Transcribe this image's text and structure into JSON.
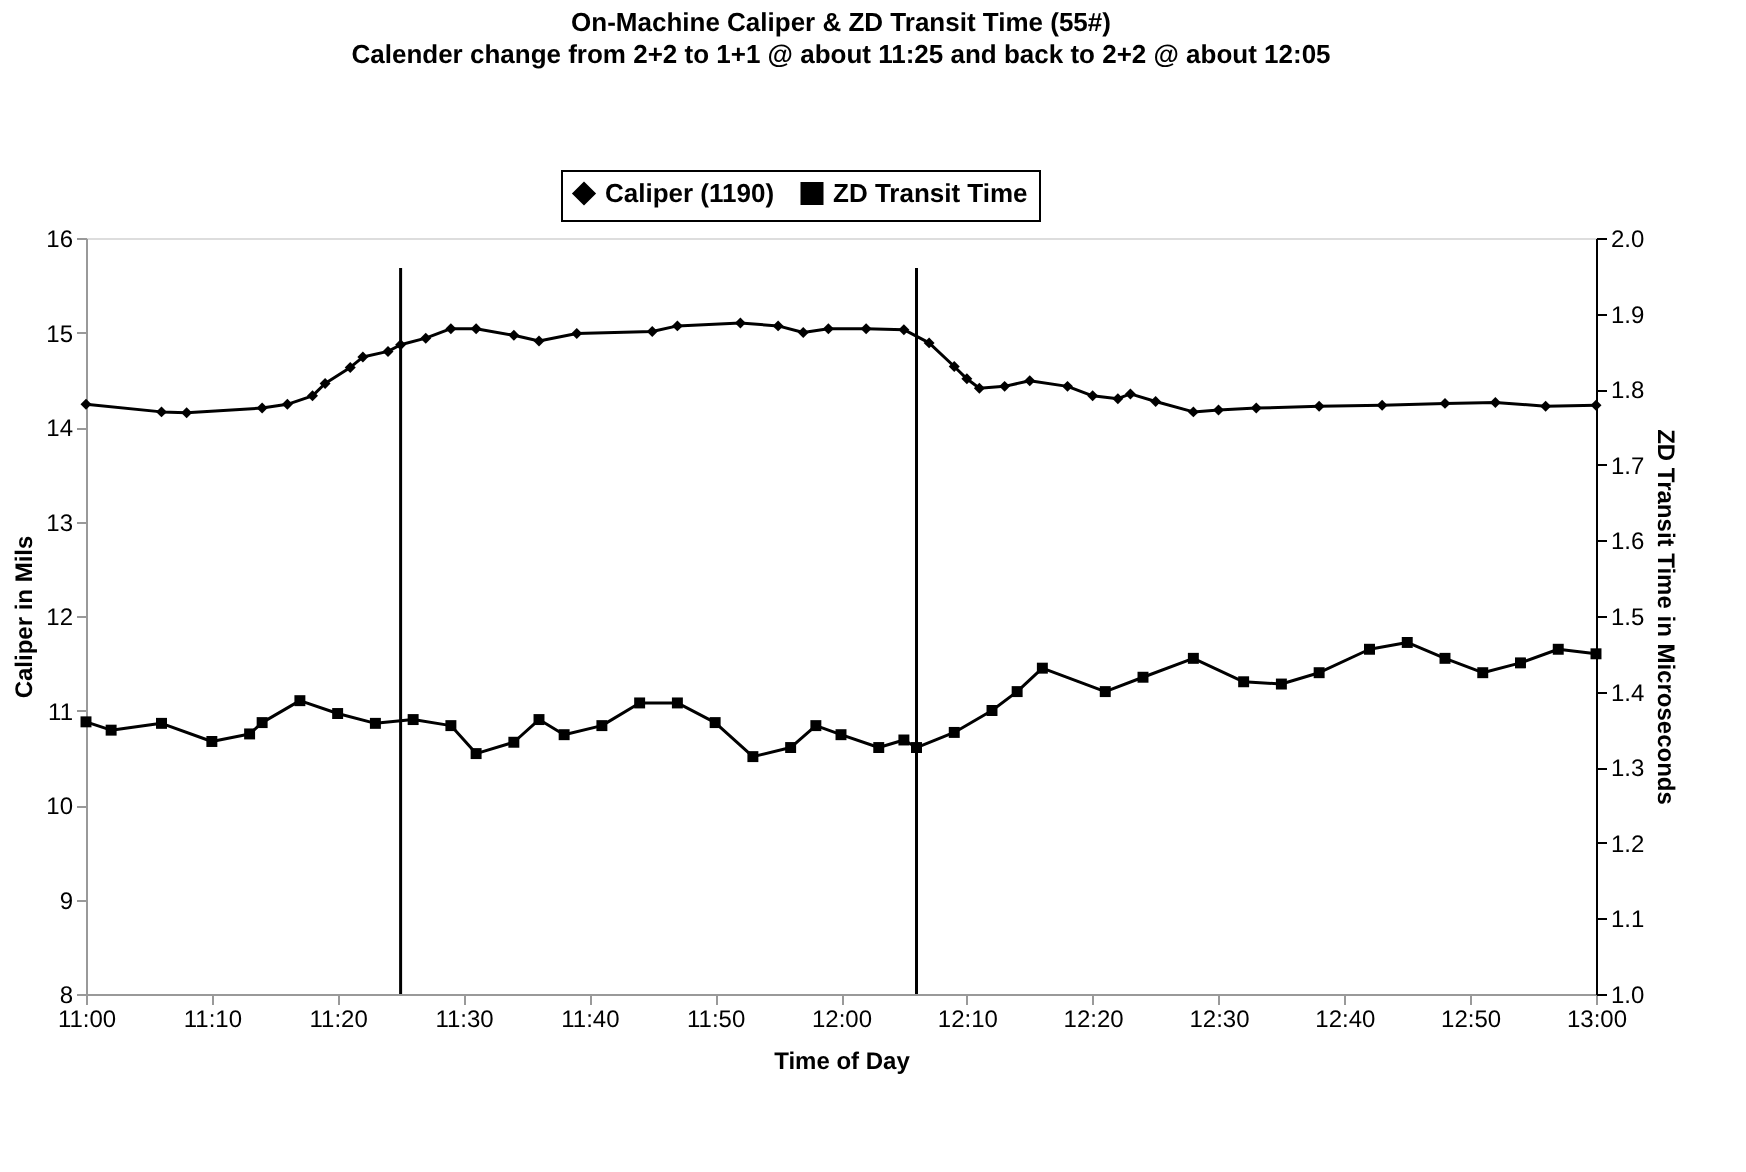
{
  "chart_data": {
    "type": "line",
    "title": "On-Machine Caliper & ZD Transit Time (55#)",
    "subtitle": "Calender change from 2+2 to 1+1 @ about 11:25 and back to 2+2 @ about 12:05",
    "xlabel": "Time of Day",
    "ylabel": "Caliper in Mils",
    "y2label": "ZD Transit Time in Microseconds",
    "xlim": [
      11,
      13
    ],
    "xticks": [
      {
        "value": 11,
        "label": "11:00"
      },
      {
        "value": 11.1667,
        "label": "11:10"
      },
      {
        "value": 11.3333,
        "label": "11:20"
      },
      {
        "value": 11.5,
        "label": "11:30"
      },
      {
        "value": 11.6667,
        "label": "11:40"
      },
      {
        "value": 11.8333,
        "label": "11:50"
      },
      {
        "value": 12,
        "label": "12:00"
      },
      {
        "value": 12.1667,
        "label": "12:10"
      },
      {
        "value": 12.3333,
        "label": "12:20"
      },
      {
        "value": 12.5,
        "label": "12:30"
      },
      {
        "value": 12.6667,
        "label": "12:40"
      },
      {
        "value": 12.8333,
        "label": "12:50"
      },
      {
        "value": 13,
        "label": "13:00"
      }
    ],
    "ylim": [
      8,
      16
    ],
    "yticks": [
      8,
      9,
      10,
      11,
      12,
      13,
      14,
      15,
      16
    ],
    "y2lim": [
      1,
      2
    ],
    "y2ticks": [
      {
        "value": 1,
        "label": "1.0"
      },
      1.1,
      1.2,
      1.3,
      1.4,
      1.5,
      1.6,
      1.7,
      1.8,
      1.9,
      {
        "value": 2,
        "label": "2.0"
      }
    ],
    "legend": "top",
    "grid": false,
    "line_style": "solid",
    "series": [
      {
        "name": "Caliper (1190)",
        "color": "#000000",
        "marker": "diamond",
        "x": [
          11,
          11.1,
          11.1333,
          11.2333,
          11.2667,
          11.3,
          11.3167,
          11.35,
          11.3667,
          11.4,
          11.4167,
          11.45,
          11.4833,
          11.5167,
          11.5667,
          11.6,
          11.65,
          11.75,
          11.7833,
          11.8667,
          11.9167,
          11.95,
          11.9833,
          12.0333,
          12.0833,
          12.1167,
          12.15,
          12.1667,
          12.1833,
          12.2167,
          12.25,
          12.3,
          12.3333,
          12.3667,
          12.3833,
          12.4167,
          12.4667,
          12.5,
          12.55,
          12.6333,
          12.7167,
          12.8,
          12.8667,
          12.9333,
          13
        ],
        "values": [
          14.24,
          14.16,
          14.15,
          14.2,
          14.24,
          14.33,
          14.46,
          14.63,
          14.74,
          14.8,
          14.87,
          14.94,
          15.04,
          15.04,
          14.97,
          14.91,
          14.99,
          15.01,
          15.07,
          15.1,
          15.07,
          15.0,
          15.04,
          15.04,
          15.03,
          14.89,
          14.64,
          14.51,
          14.41,
          14.43,
          14.49,
          14.43,
          14.33,
          14.3,
          14.35,
          14.27,
          14.16,
          14.18,
          14.2,
          14.22,
          14.23,
          14.25,
          14.26,
          14.22,
          14.23
        ]
      },
      {
        "name": "ZD Transit Time",
        "color": "#000000",
        "marker": "square",
        "axis": "y2",
        "x": [
          11,
          11.0333,
          11.1,
          11.1667,
          11.2167,
          11.2333,
          11.2833,
          11.3333,
          11.3833,
          11.4333,
          11.4833,
          11.5167,
          11.5667,
          11.6,
          11.6333,
          11.6833,
          11.7333,
          11.7833,
          11.8333,
          11.8833,
          11.9333,
          11.9667,
          12,
          12.05,
          12.0833,
          12.1,
          12.15,
          12.2,
          12.2333,
          12.2667,
          12.35,
          12.4,
          12.4667,
          12.5333,
          12.5833,
          12.6333,
          12.7,
          12.75,
          12.8,
          12.85,
          12.9,
          12.95,
          13
        ],
        "values": [
          1.36,
          1.349,
          1.358,
          1.334,
          1.344,
          1.359,
          1.388,
          1.371,
          1.358,
          1.363,
          1.355,
          1.318,
          1.333,
          1.363,
          1.343,
          1.355,
          1.385,
          1.385,
          1.359,
          1.314,
          1.326,
          1.355,
          1.343,
          1.326,
          1.336,
          1.326,
          1.346,
          1.375,
          1.4,
          1.431,
          1.4,
          1.419,
          1.444,
          1.413,
          1.41,
          1.425,
          1.456,
          1.465,
          1.444,
          1.425,
          1.438,
          1.456,
          1.45
        ]
      }
    ],
    "ref_lines": [
      {
        "axis": "x",
        "value": 11.4167,
        "color": "#000000"
      },
      {
        "axis": "x",
        "value": 12.1,
        "color": "#000000"
      }
    ]
  }
}
